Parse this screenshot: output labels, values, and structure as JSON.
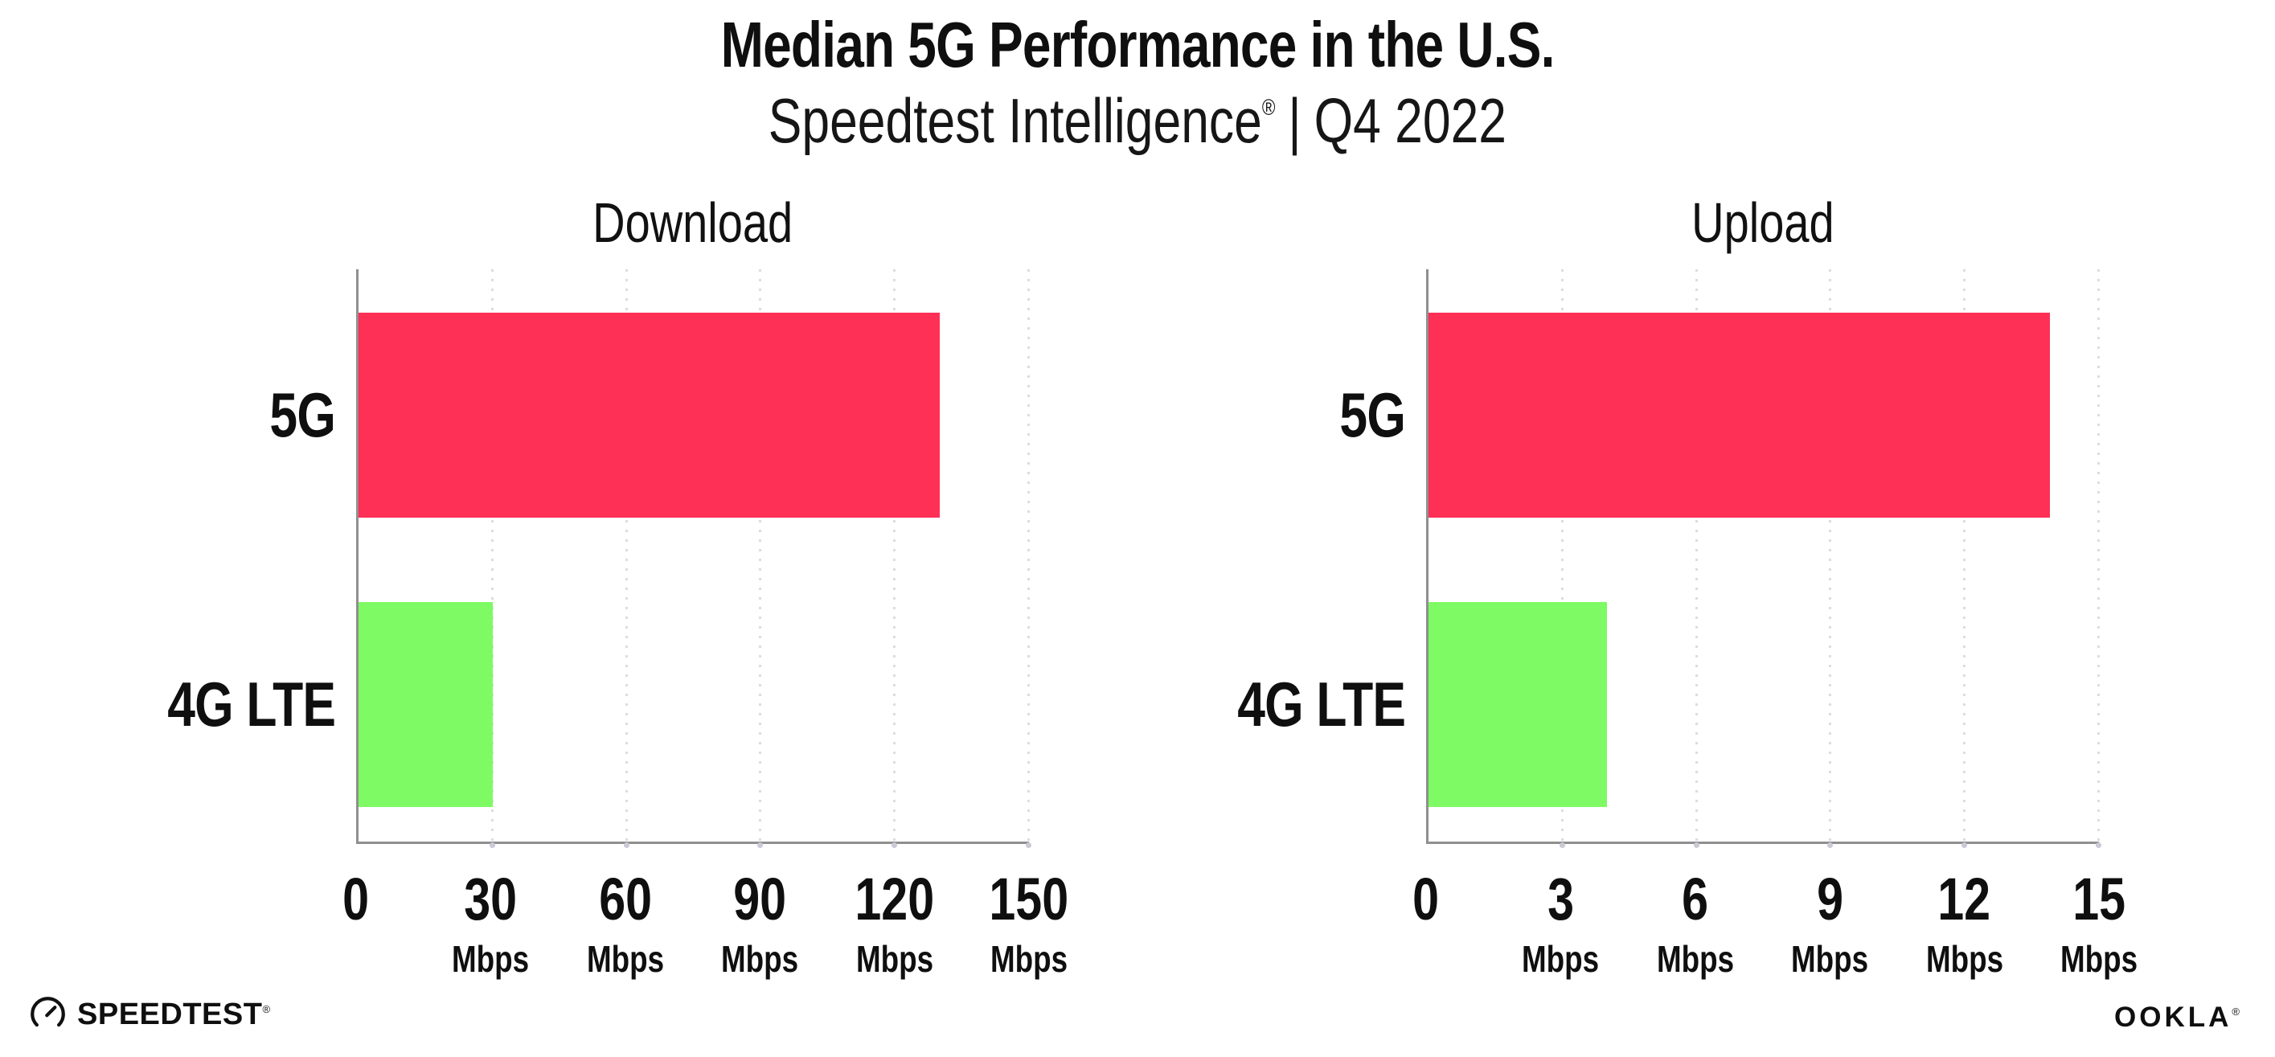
{
  "header": {
    "title": "Median 5G Performance in the U.S.",
    "subtitle_brand": "Speedtest Intelligence",
    "subtitle_mark": "®",
    "subtitle_divider": "|",
    "subtitle_period": "Q4 2022"
  },
  "chart_data": {
    "type": "bar",
    "orientation": "horizontal",
    "title": "Median 5G Performance in the U.S.",
    "subtitle": "Speedtest Intelligence® | Q4 2022",
    "grid": "vertical-dotted",
    "legend": false,
    "panels": [
      {
        "title": "Download",
        "categories": [
          "5G",
          "4G LTE"
        ],
        "values": [
          130,
          30
        ],
        "unit": "Mbps",
        "xlim": [
          0,
          150
        ],
        "xticks": [
          0,
          30,
          60,
          90,
          120,
          150
        ]
      },
      {
        "title": "Upload",
        "categories": [
          "5G",
          "4G LTE"
        ],
        "values": [
          13.9,
          4
        ],
        "unit": "Mbps",
        "xlim": [
          0,
          15
        ],
        "xticks": [
          0,
          3,
          6,
          9,
          12,
          15
        ]
      }
    ],
    "bar_colors": [
      "#ff3056",
      "#7efa64"
    ],
    "axis_color": "#8f8f8f",
    "gridline_color": "#dcdce6"
  },
  "footer": {
    "speedtest_label": "SPEEDTEST",
    "speedtest_mark": "®",
    "ookla_label": "OOKLA",
    "ookla_mark": "®"
  }
}
